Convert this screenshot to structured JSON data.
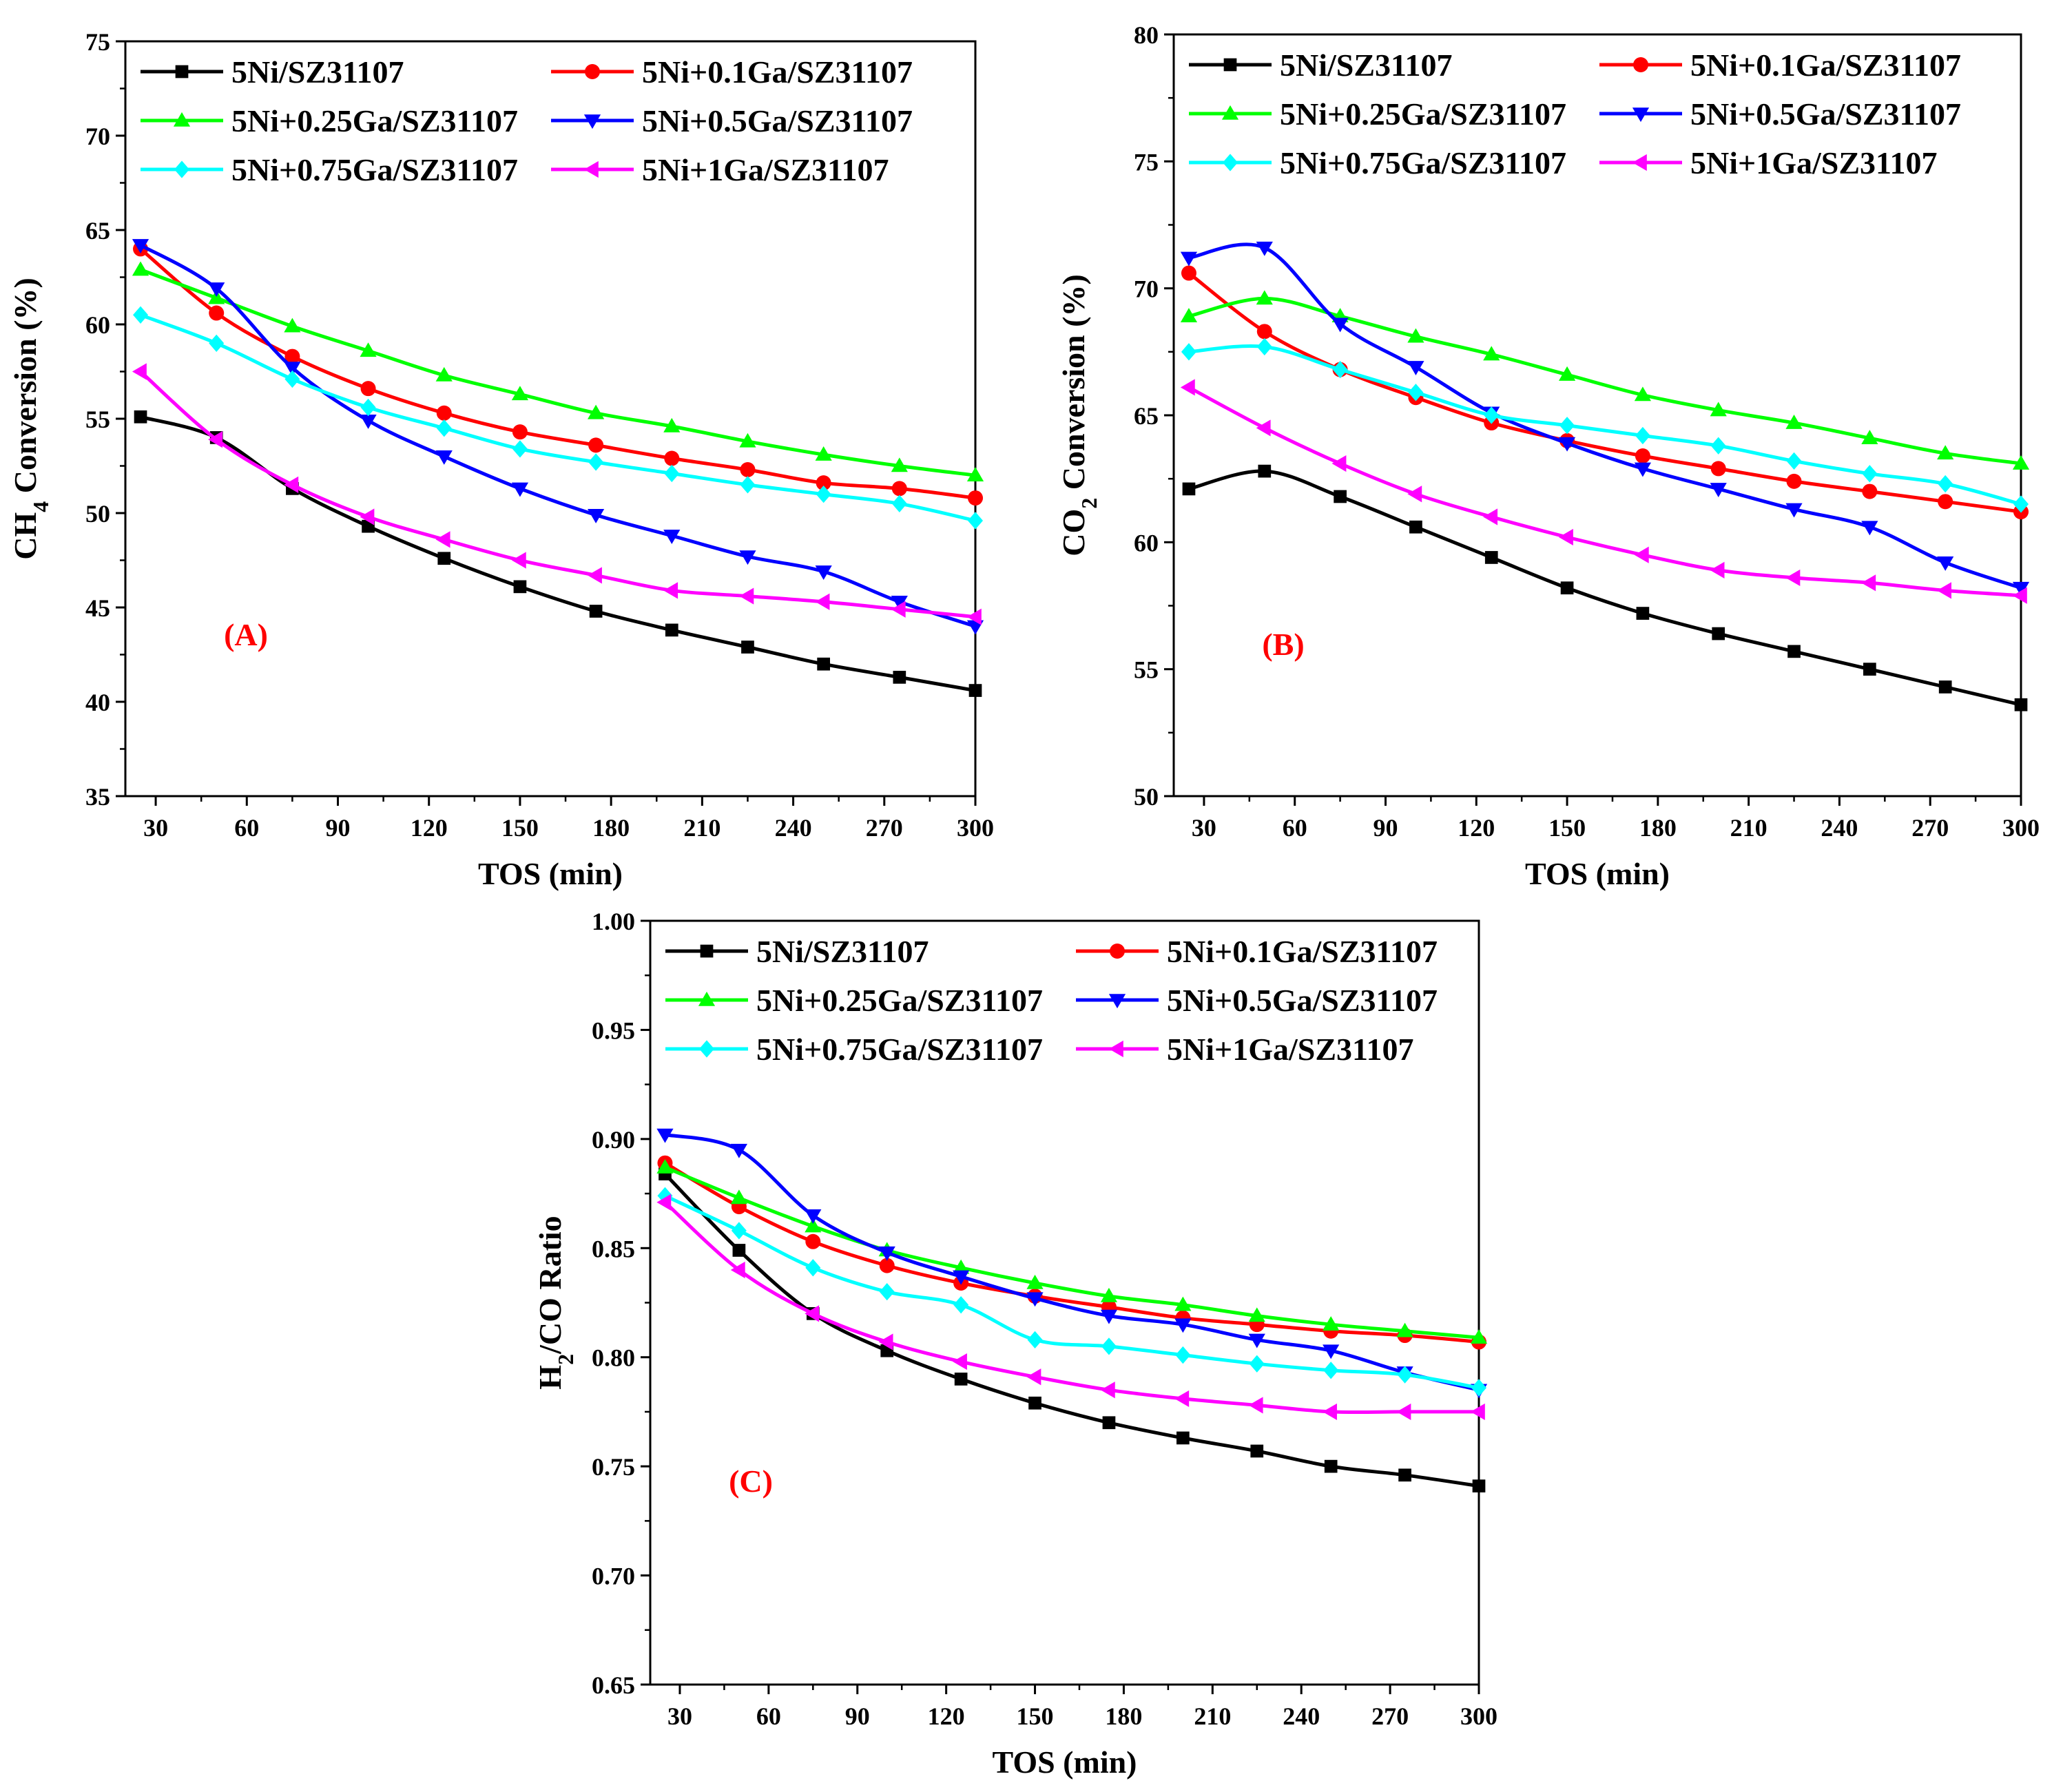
{
  "series_names": [
    "5Ni/SZ31107",
    "5Ni+0.1Ga/SZ31107",
    "5Ni+0.25Ga/SZ31107",
    "5Ni+0.5Ga/SZ31107",
    "5Ni+0.75Ga/SZ31107",
    "5Ni+1Ga/SZ31107"
  ],
  "series_colors": [
    "#000000",
    "#ff0000",
    "#00ff00",
    "#0000ff",
    "#00ffff",
    "#ff00ff"
  ],
  "series_markers": [
    "square",
    "circle",
    "triangle-up",
    "triangle-down",
    "diamond",
    "triangle-left"
  ],
  "chart_data": [
    {
      "type": "line",
      "panel_label": "(A)",
      "xlabel": "TOS (min)",
      "ylabel": "CH4 Conversion (%)",
      "xlim": [
        20,
        300
      ],
      "ylim": [
        35,
        75
      ],
      "xticks": [
        30,
        60,
        90,
        120,
        150,
        180,
        210,
        240,
        270,
        300
      ],
      "yticks": [
        35,
        40,
        45,
        50,
        55,
        60,
        65,
        70,
        75
      ],
      "legend": "top-left, two columns",
      "x": [
        25,
        50,
        75,
        100,
        125,
        150,
        175,
        200,
        225,
        250,
        275,
        300
      ],
      "series": [
        {
          "name": "5Ni/SZ31107",
          "values": [
            55.1,
            54.0,
            51.3,
            49.3,
            47.6,
            46.1,
            44.8,
            43.8,
            42.9,
            42.0,
            41.3,
            40.6
          ]
        },
        {
          "name": "5Ni+0.1Ga/SZ31107",
          "values": [
            64.0,
            60.6,
            58.3,
            56.6,
            55.3,
            54.3,
            53.6,
            52.9,
            52.3,
            51.6,
            51.3,
            50.8
          ]
        },
        {
          "name": "5Ni+0.25Ga/SZ31107",
          "values": [
            62.9,
            61.4,
            59.9,
            58.6,
            57.3,
            56.3,
            55.3,
            54.6,
            53.8,
            53.1,
            52.5,
            52.0
          ]
        },
        {
          "name": "5Ni+0.5Ga/SZ31107",
          "values": [
            64.2,
            61.9,
            57.7,
            54.9,
            53.0,
            51.3,
            49.9,
            48.8,
            47.7,
            46.9,
            45.3,
            44.0
          ]
        },
        {
          "name": "5Ni+0.75Ga/SZ31107",
          "values": [
            60.5,
            59.0,
            57.1,
            55.6,
            54.5,
            53.4,
            52.7,
            52.1,
            51.5,
            51.0,
            50.5,
            49.6
          ]
        },
        {
          "name": "5Ni+1Ga/SZ31107",
          "values": [
            57.5,
            53.9,
            51.5,
            49.8,
            48.6,
            47.5,
            46.7,
            45.9,
            45.6,
            45.3,
            44.9,
            44.5
          ]
        }
      ]
    },
    {
      "type": "line",
      "panel_label": "(B)",
      "xlabel": "TOS (min)",
      "ylabel": "CO2 Conversion (%)",
      "xlim": [
        20,
        300
      ],
      "ylim": [
        50,
        80
      ],
      "xticks": [
        30,
        60,
        90,
        120,
        150,
        180,
        210,
        240,
        270,
        300
      ],
      "yticks": [
        50,
        55,
        60,
        65,
        70,
        75,
        80
      ],
      "legend": "top-left, two columns",
      "x": [
        25,
        50,
        75,
        100,
        125,
        150,
        175,
        200,
        225,
        250,
        275,
        300
      ],
      "series": [
        {
          "name": "5Ni/SZ31107",
          "values": [
            62.1,
            62.8,
            61.8,
            60.6,
            59.4,
            58.2,
            57.2,
            56.4,
            55.7,
            55.0,
            54.3,
            53.6
          ]
        },
        {
          "name": "5Ni+0.1Ga/SZ31107",
          "values": [
            70.6,
            68.3,
            66.8,
            65.7,
            64.7,
            64.0,
            63.4,
            62.9,
            62.4,
            62.0,
            61.6,
            61.2
          ]
        },
        {
          "name": "5Ni+0.25Ga/SZ31107",
          "values": [
            68.9,
            69.6,
            68.9,
            68.1,
            67.4,
            66.6,
            65.8,
            65.2,
            64.7,
            64.1,
            63.5,
            63.1
          ]
        },
        {
          "name": "5Ni+0.5Ga/SZ31107",
          "values": [
            71.2,
            71.6,
            68.6,
            66.9,
            65.1,
            63.9,
            62.9,
            62.1,
            61.3,
            60.6,
            59.2,
            58.2
          ]
        },
        {
          "name": "5Ni+0.75Ga/SZ31107",
          "values": [
            67.5,
            67.7,
            66.8,
            65.9,
            65.0,
            64.6,
            64.2,
            63.8,
            63.2,
            62.7,
            62.3,
            61.5
          ]
        },
        {
          "name": "5Ni+1Ga/SZ31107",
          "values": [
            66.1,
            64.5,
            63.1,
            61.9,
            61.0,
            60.2,
            59.5,
            58.9,
            58.6,
            58.4,
            58.1,
            57.9
          ]
        }
      ]
    },
    {
      "type": "line",
      "panel_label": "(C)",
      "xlabel": "TOS (min)",
      "ylabel": "H2/CO Ratio",
      "xlim": [
        20,
        300
      ],
      "ylim": [
        0.65,
        1.0
      ],
      "xticks": [
        30,
        60,
        90,
        120,
        150,
        180,
        210,
        240,
        270,
        300
      ],
      "yticks": [
        0.65,
        0.7,
        0.75,
        0.8,
        0.85,
        0.9,
        0.95,
        1.0
      ],
      "ytick_labels": [
        "0.65",
        "0.70",
        "0.75",
        "0.80",
        "0.85",
        "0.90",
        "0.95",
        "1.00"
      ],
      "legend": "top-left, two columns",
      "x": [
        25,
        50,
        75,
        100,
        125,
        150,
        175,
        200,
        225,
        250,
        275,
        300
      ],
      "series": [
        {
          "name": "5Ni/SZ31107",
          "values": [
            0.884,
            0.849,
            0.82,
            0.803,
            0.79,
            0.779,
            0.77,
            0.763,
            0.757,
            0.75,
            0.746,
            0.741
          ]
        },
        {
          "name": "5Ni+0.1Ga/SZ31107",
          "values": [
            0.889,
            0.869,
            0.853,
            0.842,
            0.834,
            0.828,
            0.823,
            0.818,
            0.815,
            0.812,
            0.81,
            0.807
          ]
        },
        {
          "name": "5Ni+0.25Ga/SZ31107",
          "values": [
            0.887,
            0.873,
            0.86,
            0.849,
            0.841,
            0.834,
            0.828,
            0.824,
            0.819,
            0.815,
            0.812,
            0.809
          ]
        },
        {
          "name": "5Ni+0.5Ga/SZ31107",
          "values": [
            0.902,
            0.895,
            0.865,
            0.848,
            0.837,
            0.827,
            0.819,
            0.815,
            0.808,
            0.803,
            0.793,
            0.785
          ]
        },
        {
          "name": "5Ni+0.75Ga/SZ31107",
          "values": [
            0.874,
            0.858,
            0.841,
            0.83,
            0.824,
            0.808,
            0.805,
            0.801,
            0.797,
            0.794,
            0.792,
            0.786
          ]
        },
        {
          "name": "5Ni+1Ga/SZ31107",
          "values": [
            0.871,
            0.84,
            0.82,
            0.807,
            0.798,
            0.791,
            0.785,
            0.781,
            0.778,
            0.775,
            0.775,
            0.775
          ]
        }
      ]
    }
  ]
}
